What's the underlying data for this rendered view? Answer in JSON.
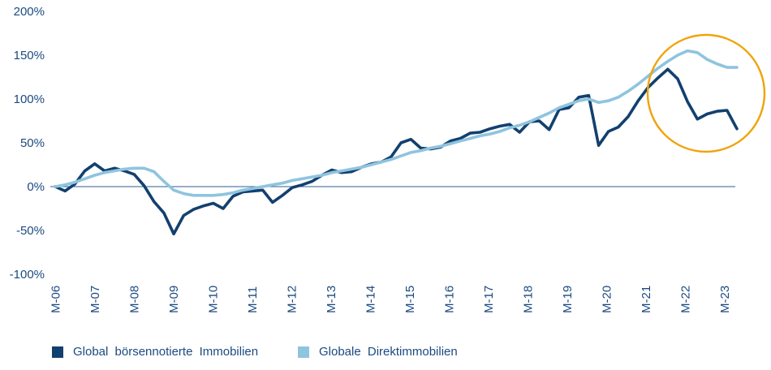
{
  "colors": {
    "background": "#FFFFFF",
    "axis_text": "#1B4A80",
    "zero_line": "#2F5E92",
    "highlight_circle": "#F0A30A"
  },
  "chart_data": {
    "type": "line",
    "title": "",
    "xlabel": "",
    "ylabel": "",
    "y_unit": "%",
    "ylim": [
      -100,
      200
    ],
    "grid": false,
    "zero_line": true,
    "legend_position": "bottom-left",
    "y_tick_values": [
      200,
      150,
      100,
      50,
      0,
      -50,
      -100
    ],
    "y_tick_labels": [
      "200%",
      "150%",
      "100%",
      "50%",
      "0%",
      "-50%",
      "-100%"
    ],
    "x_tick_labels": [
      "M-06",
      "M-07",
      "M-08",
      "M-09",
      "M-10",
      "M-11",
      "M-12",
      "M-13",
      "M-14",
      "M-15",
      "M-16",
      "M-17",
      "M-18",
      "M-19",
      "M-20",
      "M-21",
      "M-22",
      "M-23"
    ],
    "samples_per_year": 4,
    "series": [
      {
        "name": "Global börsennotierte Immobilien",
        "color": "#12406F",
        "values": [
          0,
          -5,
          3,
          18,
          26,
          18,
          21,
          18,
          14,
          1,
          -17,
          -30,
          -54,
          -33,
          -26,
          -22,
          -19,
          -25,
          -11,
          -6,
          -5,
          -4,
          -18,
          -10,
          -1,
          2,
          6,
          13,
          19,
          16,
          17,
          22,
          26,
          28,
          34,
          50,
          54,
          44,
          43,
          45,
          52,
          55,
          61,
          62,
          66,
          69,
          71,
          62,
          74,
          75,
          65,
          88,
          90,
          102,
          104,
          47,
          63,
          68,
          80,
          98,
          113,
          124,
          134,
          123,
          97,
          77,
          83,
          86,
          87,
          66
        ]
      },
      {
        "name": "Globale Direktimmobilien",
        "color": "#8FC4DE",
        "values": [
          0,
          2,
          5,
          9,
          13,
          16,
          18,
          20,
          21,
          21,
          17,
          6,
          -4,
          -8,
          -10,
          -10,
          -10,
          -9,
          -7,
          -4,
          -2,
          0,
          2,
          4,
          7,
          9,
          11,
          13,
          16,
          18,
          20,
          22,
          25,
          28,
          31,
          35,
          39,
          41,
          44,
          46,
          49,
          52,
          55,
          58,
          60,
          63,
          67,
          70,
          74,
          79,
          84,
          90,
          94,
          98,
          100,
          96,
          98,
          102,
          109,
          117,
          126,
          135,
          143,
          150,
          155,
          153,
          145,
          140,
          136,
          136
        ]
      }
    ],
    "annotation_circle": {
      "color": "#F0A30A",
      "around_x_labels": [
        "M-21",
        "M-22",
        "M-23"
      ]
    }
  }
}
